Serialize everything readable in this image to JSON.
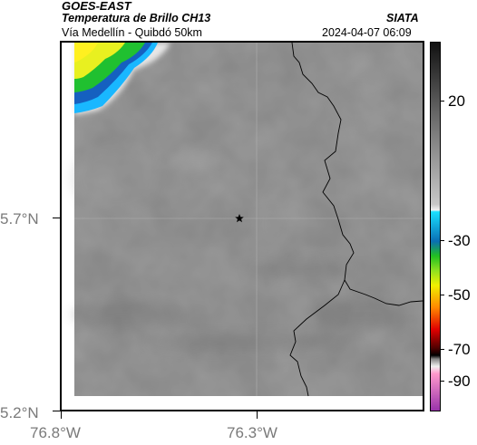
{
  "header": {
    "satellite": "GOES-EAST",
    "product": "Temperatura de Brillo CH13",
    "organization": "SIATA",
    "region": "Vía Medellín - Quibdó 50km",
    "datetime": "2024-04-07 06:09"
  },
  "axes": {
    "lat_labels": [
      "5.7°N",
      "5.2°N"
    ],
    "lon_labels": [
      "76.8°W",
      "76.3°W"
    ]
  },
  "colorbar": {
    "tick_labels": [
      "20",
      "-30",
      "-50",
      "-70",
      "-90"
    ],
    "colors": {
      "gray_top": "#111111",
      "gray_mid": "#c8c8c8",
      "light_blue": "#19e0ff",
      "blue": "#0a6fb4",
      "green": "#21c021",
      "yellow": "#f0f000",
      "orange": "#ff8800",
      "red": "#e00000",
      "dark_red": "#500000",
      "pink": "#ff99cc",
      "purple": "#9933aa"
    }
  },
  "map": {
    "marker": "star-icon",
    "background_color": "#8a8a8a"
  }
}
